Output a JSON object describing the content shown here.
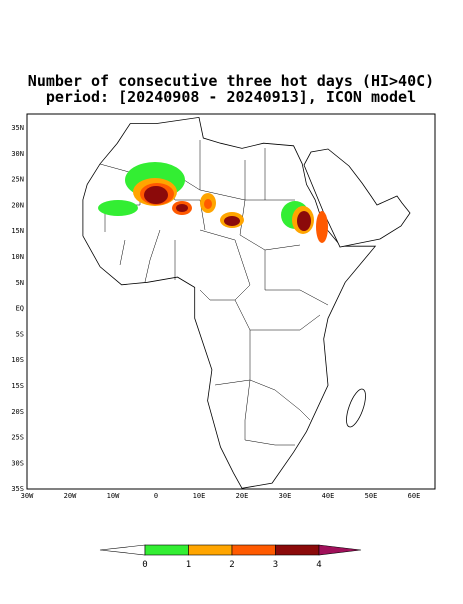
{
  "title": [
    "Number of consecutive three hot days (HI>40C)",
    "period: [20240908 - 20240913], ICON model"
  ],
  "map": {
    "lat_labels": [
      "35N",
      "30N",
      "25N",
      "20N",
      "15N",
      "10N",
      "5N",
      "EQ",
      "5S",
      "10S",
      "15S",
      "20S",
      "25S",
      "30S",
      "35S"
    ],
    "lon_labels": [
      "30W",
      "20W",
      "10W",
      "0",
      "10E",
      "20E",
      "30E",
      "40E",
      "50E",
      "60E"
    ]
  },
  "colorbar": {
    "colors": [
      "#ffffff",
      "#33ee33",
      "#ffa500",
      "#ff5a00",
      "#8b0a0a",
      "#a0105a"
    ],
    "labels": [
      "0",
      "1",
      "2",
      "3",
      "4"
    ]
  }
}
